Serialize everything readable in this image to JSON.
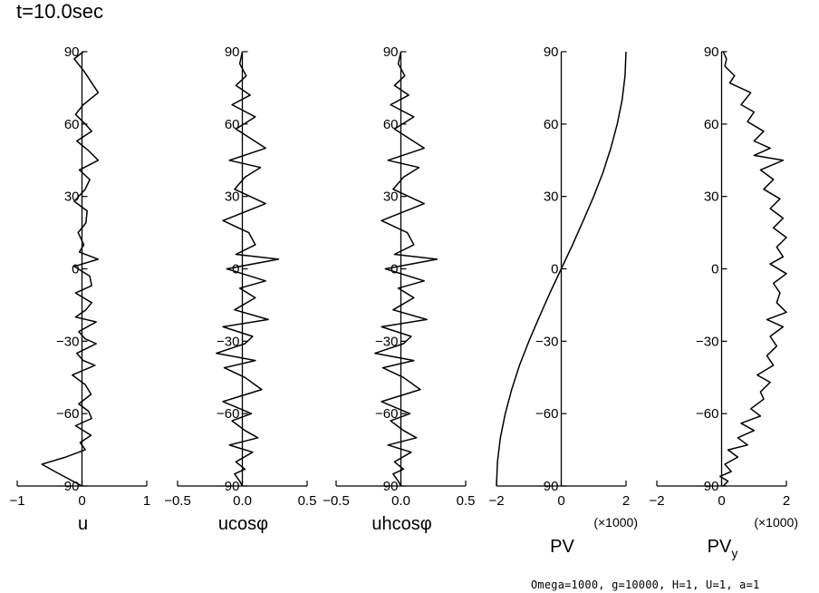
{
  "title": "t=10.0sec",
  "footer": "Omega=1000, g=10000, H=1, U=1, a=1",
  "chart_data": [
    {
      "type": "line",
      "xlabel": "u",
      "xlim": [
        -1,
        1
      ],
      "xticks": [
        "-1",
        "0",
        "1"
      ],
      "xticks_values": [
        -1,
        0,
        1
      ],
      "ylim": [
        -90,
        90
      ],
      "yticks": [
        "90",
        "60",
        "30",
        "0",
        "-30",
        "-60",
        "-90"
      ],
      "yticks_values": [
        90,
        60,
        30,
        0,
        -30,
        -60,
        -90
      ],
      "multiplier_label": "",
      "series": [
        {
          "x": [
            0.02,
            -0.12,
            0.03,
            0.25,
            0.02,
            -0.1,
            0.05,
            0.15,
            -0.08,
            0.1,
            0.25,
            -0.04,
            0.12,
            0.05,
            -0.12,
            0.08,
            0.06,
            -0.06,
            0.03,
            -0.04,
            0.25,
            -0.12,
            0.12,
            0.15,
            -0.1,
            0.15,
            0.06,
            -0.1,
            0.22,
            -0.05,
            0.05,
            0.22,
            -0.08,
            0.02,
            0.2,
            -0.15,
            0.05,
            0.14,
            -0.05,
            0.1,
            0.15,
            -0.1,
            0.14,
            -0.03,
            0.05,
            -0.25,
            -0.62,
            -0.42,
            0.0
          ],
          "y": [
            90,
            87,
            82,
            73,
            68,
            64,
            60,
            57,
            53,
            49,
            45,
            41,
            37,
            33,
            28,
            24,
            19,
            15,
            10,
            7,
            4,
            1,
            -3,
            -7,
            -10,
            -14,
            -17,
            -20,
            -22,
            -26,
            -29,
            -31,
            -35,
            -38,
            -40,
            -44,
            -48,
            -52,
            -56,
            -59,
            -62,
            -65,
            -69,
            -72,
            -75,
            -78,
            -81,
            -84,
            -90
          ]
        }
      ]
    },
    {
      "type": "line",
      "xlabel": "ucosφ",
      "xlim": [
        -0.5,
        0.5
      ],
      "xticks": [
        "-0.5",
        "0.0",
        "0.5"
      ],
      "xticks_values": [
        -0.5,
        0.0,
        0.5
      ],
      "ylim": [
        -90,
        90
      ],
      "yticks": [
        "90",
        "60",
        "30",
        "0",
        "-30",
        "-60",
        "-90"
      ],
      "yticks_values": [
        90,
        60,
        30,
        0,
        -30,
        -60,
        -90
      ],
      "multiplier_label": "",
      "series": [
        {
          "x": [
            0.0,
            -0.02,
            0.03,
            -0.05,
            0.06,
            -0.08,
            0.1,
            -0.05,
            0.18,
            -0.1,
            0.14,
            0.02,
            -0.06,
            0.18,
            -0.15,
            0.05,
            0.1,
            -0.05,
            0.28,
            -0.12,
            0.18,
            -0.02,
            0.1,
            -0.06,
            0.2,
            -0.15,
            0.08,
            0.02,
            -0.2,
            0.1,
            -0.14,
            0.02,
            0.15,
            -0.15,
            0.07,
            -0.08,
            0.02,
            0.12,
            -0.1,
            0.08,
            -0.05,
            0.02,
            -0.06,
            -0.02,
            0.0
          ],
          "y": [
            90,
            85,
            80,
            76,
            72,
            68,
            63,
            58,
            50,
            45,
            42,
            38,
            33,
            27,
            20,
            15,
            10,
            6,
            4,
            0,
            -5,
            -8,
            -12,
            -17,
            -21,
            -24,
            -28,
            -31,
            -35,
            -38,
            -41,
            -45,
            -50,
            -55,
            -60,
            -63,
            -67,
            -70,
            -73,
            -76,
            -80,
            -83,
            -85,
            -88,
            -90
          ]
        }
      ]
    },
    {
      "type": "line",
      "xlabel": "uhcosφ",
      "xlim": [
        -0.5,
        0.5
      ],
      "xticks": [
        "-0.5",
        "0.0",
        "0.5"
      ],
      "xticks_values": [
        -0.5,
        0.0,
        0.5
      ],
      "ylim": [
        -90,
        90
      ],
      "yticks": [
        "90",
        "60",
        "30",
        "0",
        "-30",
        "-60",
        "-90"
      ],
      "yticks_values": [
        90,
        60,
        30,
        0,
        -30,
        -60,
        -90
      ],
      "multiplier_label": "",
      "series": [
        {
          "x": [
            0.0,
            -0.02,
            0.03,
            -0.05,
            0.06,
            -0.08,
            0.1,
            -0.05,
            0.18,
            -0.1,
            0.14,
            0.02,
            -0.06,
            0.18,
            -0.15,
            0.05,
            0.1,
            -0.05,
            0.28,
            -0.12,
            0.18,
            -0.02,
            0.1,
            -0.06,
            0.2,
            -0.15,
            0.08,
            0.02,
            -0.2,
            0.1,
            -0.14,
            0.02,
            0.15,
            -0.15,
            0.07,
            -0.08,
            0.02,
            0.12,
            -0.1,
            0.08,
            -0.05,
            0.02,
            -0.06,
            -0.02,
            0.0
          ],
          "y": [
            90,
            85,
            80,
            76,
            72,
            68,
            63,
            58,
            50,
            45,
            42,
            38,
            33,
            27,
            20,
            15,
            10,
            6,
            4,
            0,
            -5,
            -8,
            -12,
            -17,
            -21,
            -24,
            -28,
            -31,
            -35,
            -38,
            -41,
            -45,
            -50,
            -55,
            -60,
            -63,
            -67,
            -70,
            -73,
            -76,
            -80,
            -83,
            -85,
            -88,
            -90
          ]
        }
      ]
    },
    {
      "type": "line",
      "xlabel": "PV",
      "xlabel_sub": "",
      "xlim": [
        -2,
        2
      ],
      "xticks": [
        "-2",
        "0",
        "2"
      ],
      "xticks_values": [
        -2,
        0,
        2
      ],
      "ylim": [
        -90,
        90
      ],
      "yticks": [
        "90",
        "60",
        "30",
        "0",
        "-30",
        "-60",
        "-90"
      ],
      "yticks_values": [
        90,
        60,
        30,
        0,
        -30,
        -60,
        -90
      ],
      "multiplier_label": "(×1000)",
      "series": [
        {
          "x": [
            2.0,
            1.97,
            1.88,
            1.73,
            1.53,
            1.29,
            1.0,
            0.68,
            0.35,
            0.0,
            -0.35,
            -0.68,
            -1.0,
            -1.29,
            -1.53,
            -1.73,
            -1.88,
            -1.97,
            -2.0
          ],
          "y": [
            90,
            80,
            70,
            60,
            50,
            40,
            30,
            20,
            10,
            0,
            -10,
            -20,
            -30,
            -40,
            -50,
            -60,
            -70,
            -80,
            -90
          ]
        }
      ]
    },
    {
      "type": "line",
      "xlabel": "PV",
      "xlabel_sub": "y",
      "xlim": [
        -2,
        2
      ],
      "xticks": [
        "-2",
        "0",
        "2"
      ],
      "xticks_values": [
        -2,
        0,
        2
      ],
      "ylim": [
        -90,
        90
      ],
      "yticks": [
        "90",
        "60",
        "30",
        "0",
        "-30",
        "-60",
        "-90"
      ],
      "yticks_values": [
        90,
        60,
        30,
        0,
        -30,
        -60,
        -90
      ],
      "multiplier_label": "(×1000)",
      "series": [
        {
          "x": [
            0.05,
            0.15,
            0.1,
            0.4,
            0.25,
            0.9,
            0.6,
            1.0,
            0.8,
            1.3,
            1.0,
            1.5,
            1.0,
            1.9,
            1.2,
            1.6,
            1.3,
            1.8,
            1.5,
            1.9,
            1.6,
            2.0,
            1.7,
            1.9,
            1.5,
            2.0,
            1.6,
            1.8,
            1.7,
            2.0,
            1.4,
            1.9,
            1.5,
            1.7,
            1.4,
            1.6,
            1.1,
            1.5,
            1.2,
            1.3,
            0.9,
            1.2,
            0.6,
            1.0,
            0.5,
            0.8,
            0.2,
            0.5,
            0.1,
            0.3,
            -0.05,
            0.2,
            0.05
          ],
          "y": [
            90,
            87,
            84,
            80,
            77,
            73,
            68,
            65,
            61,
            57,
            53,
            50,
            47,
            45,
            41,
            37,
            33,
            29,
            25,
            21,
            17,
            13,
            9,
            5,
            2,
            -2,
            -6,
            -10,
            -14,
            -18,
            -21,
            -24,
            -28,
            -32,
            -36,
            -40,
            -44,
            -47,
            -51,
            -54,
            -58,
            -61,
            -64,
            -67,
            -70,
            -73,
            -75,
            -78,
            -81,
            -84,
            -86,
            -88,
            -90
          ]
        }
      ]
    }
  ]
}
